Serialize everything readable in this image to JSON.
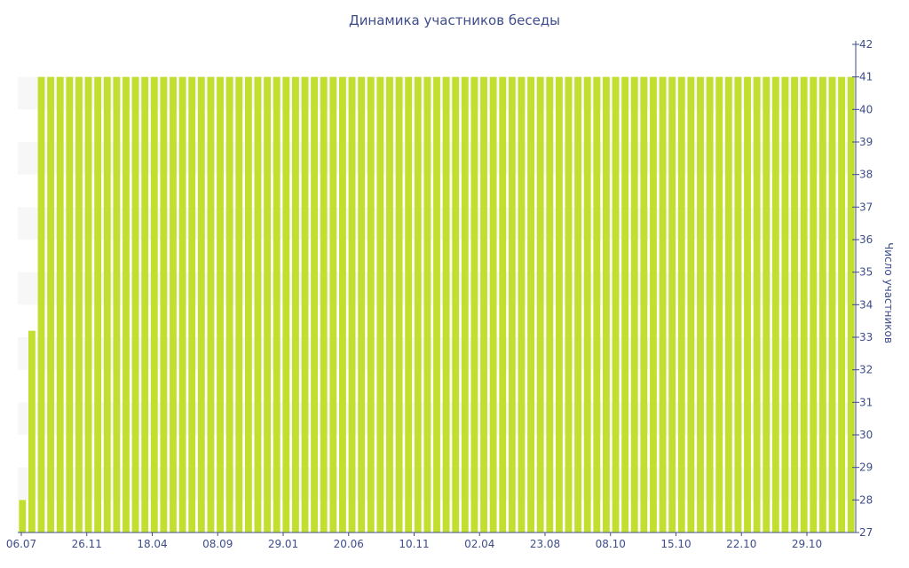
{
  "chart_data": {
    "type": "bar",
    "title": "Динамика участников беседы",
    "xlabel": "",
    "ylabel": "Число участников",
    "ylim": [
      27,
      42
    ],
    "y_ticks": [
      27,
      28,
      29,
      30,
      31,
      32,
      33,
      34,
      35,
      36,
      37,
      38,
      39,
      40,
      41,
      42
    ],
    "y_axis_side": "right",
    "x_tick_labels": [
      "06.07",
      "26.11",
      "18.04",
      "08.09",
      "29.01",
      "20.06",
      "10.11",
      "02.04",
      "23.08",
      "08.10",
      "15.10",
      "22.10",
      "29.10"
    ],
    "bar_count": 89,
    "values": [
      28,
      33.2,
      41,
      41,
      41,
      41,
      41,
      41,
      41,
      41,
      41,
      41,
      41,
      41,
      41,
      41,
      41,
      41,
      41,
      41,
      41,
      41,
      41,
      41,
      41,
      41,
      41,
      41,
      41,
      41,
      41,
      41,
      41,
      41,
      41,
      41,
      41,
      41,
      41,
      41,
      41,
      41,
      41,
      41,
      41,
      41,
      41,
      41,
      41,
      41,
      41,
      41,
      41,
      41,
      41,
      41,
      41,
      41,
      41,
      41,
      41,
      41,
      41,
      41,
      41,
      41,
      41,
      41,
      41,
      41,
      41,
      41,
      41,
      41,
      41,
      41,
      41,
      41,
      41,
      41,
      41,
      41,
      41,
      41,
      41,
      41,
      41,
      41,
      41
    ],
    "bar_color": "#c2df2f",
    "band_color": "#f7f7f7",
    "text_color": "#3e4d8a",
    "grid": false,
    "legend": "none"
  }
}
